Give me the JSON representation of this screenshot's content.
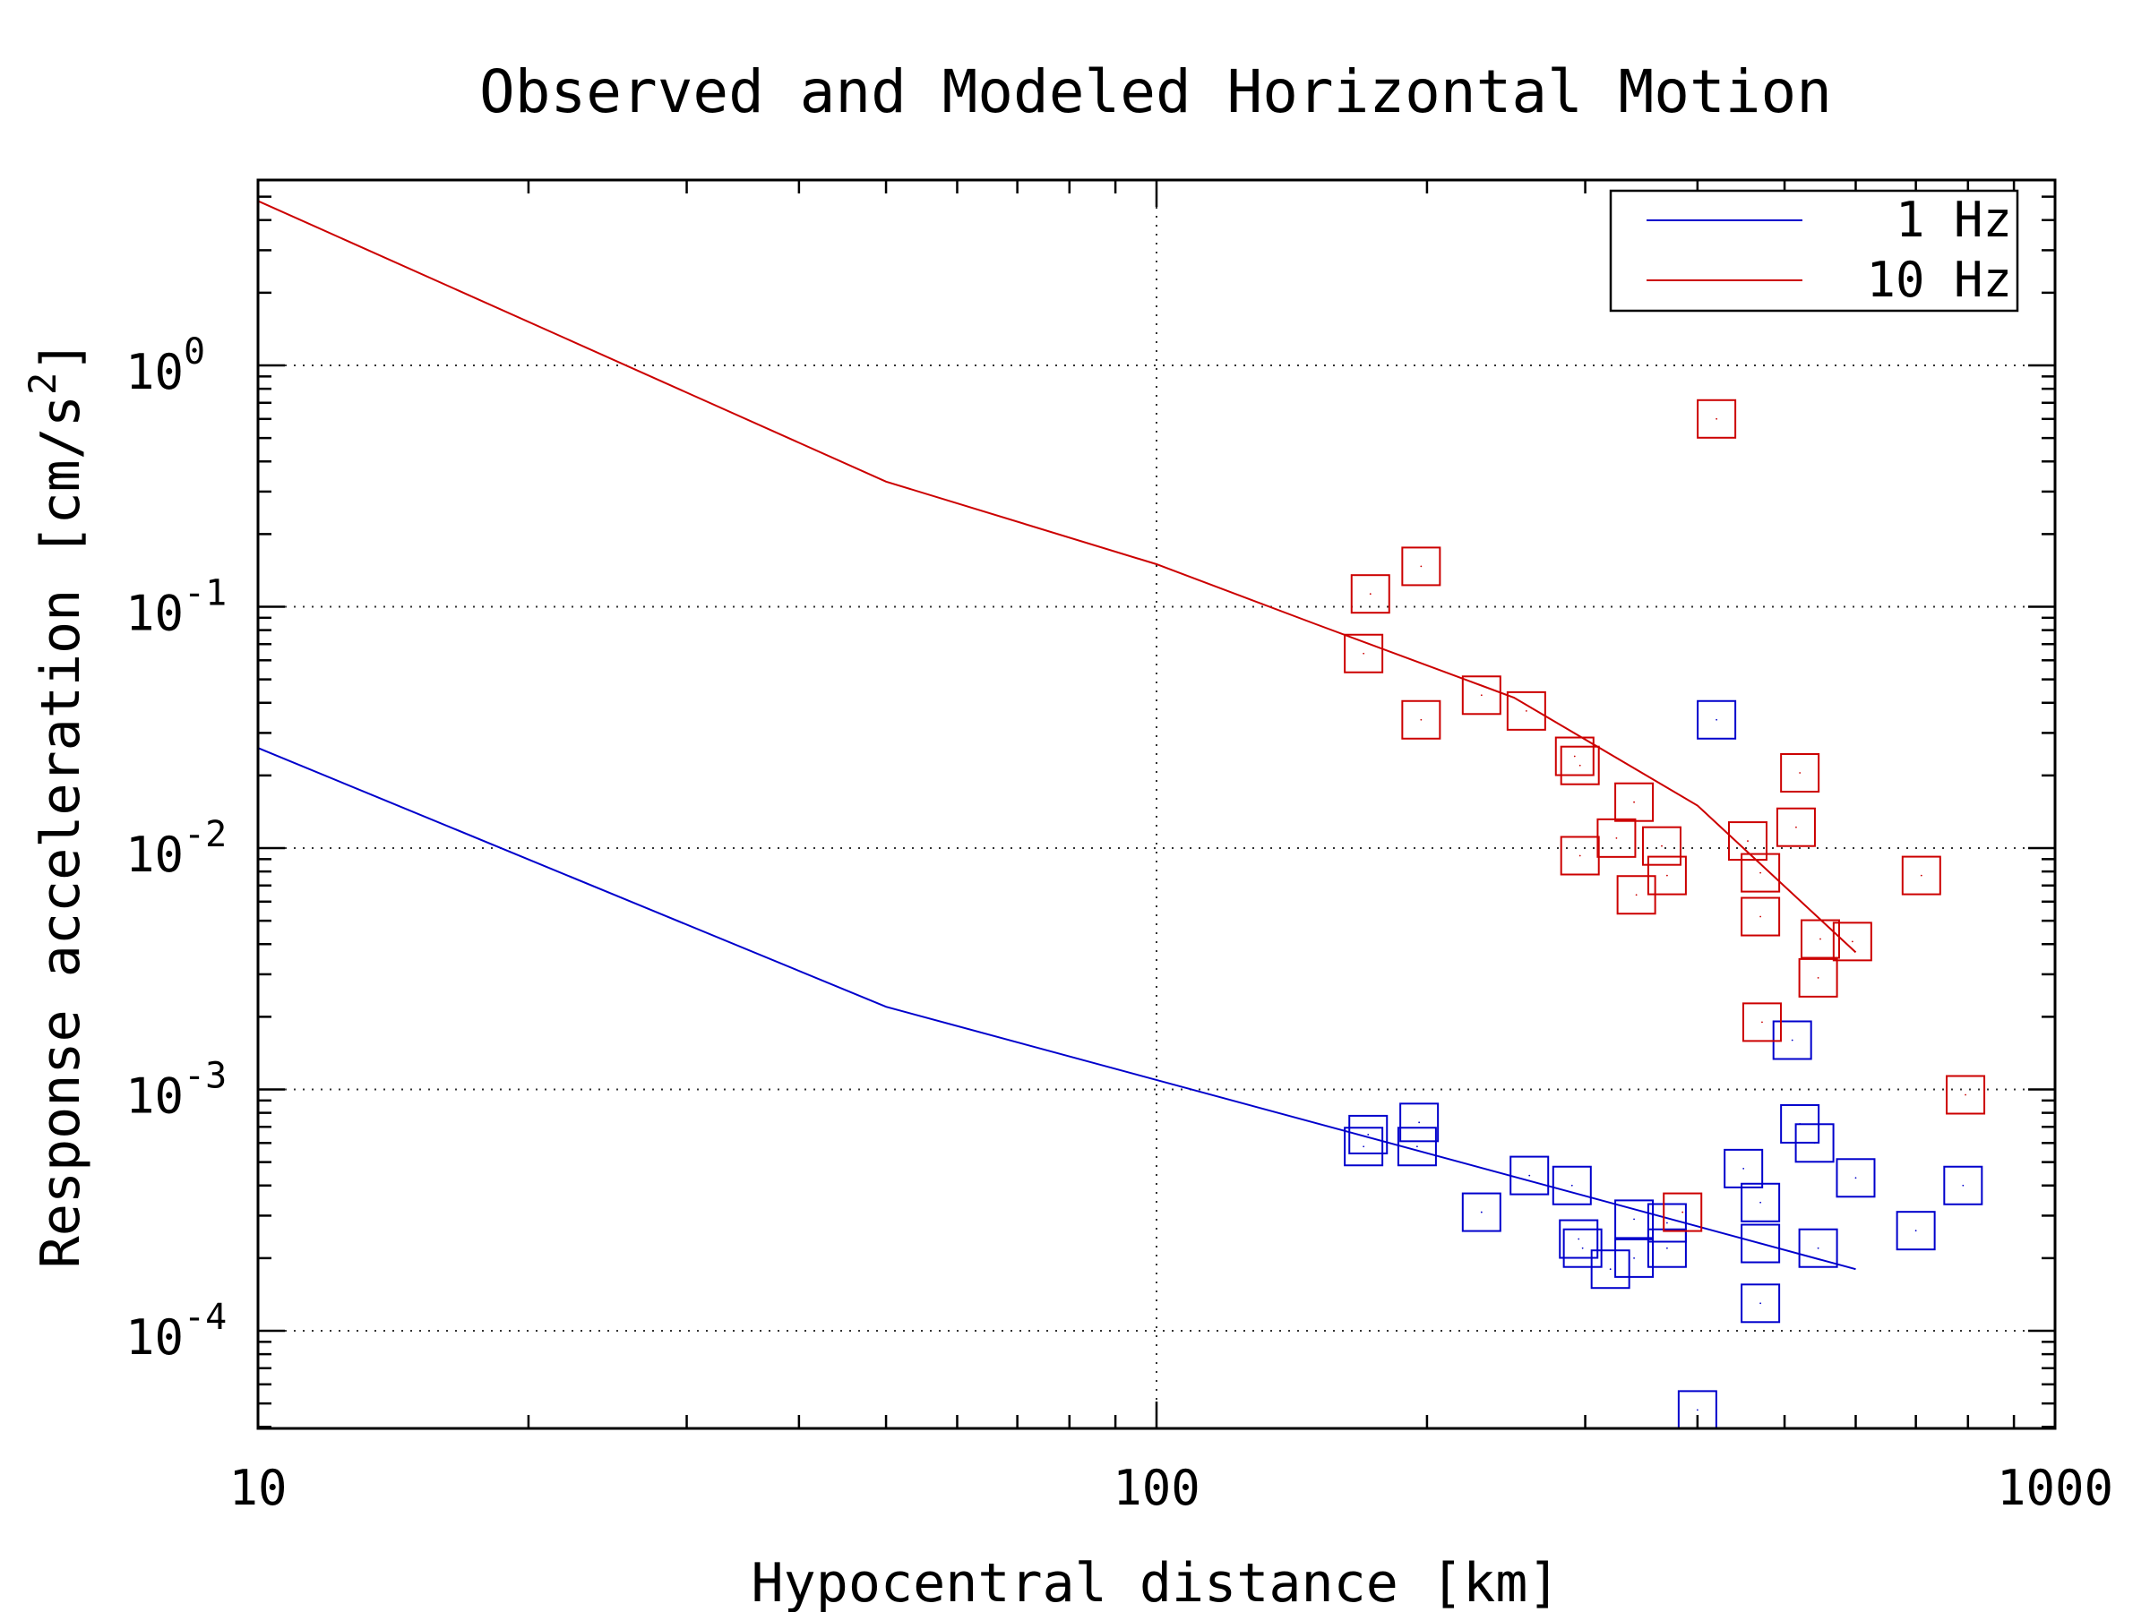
{
  "chart_data": {
    "type": "scatter",
    "title": "Observed and Modeled Horizontal Motion",
    "xlabel": "Hypocentral distance [km]",
    "ylabel": "Response acceleration [cm/s",
    "ylabel_superscript": "2",
    "ylabel_close": "]",
    "xscale": "log",
    "yscale": "log",
    "xlim": [
      10,
      1000
    ],
    "ylim": [
      4e-05,
      5.5
    ],
    "grid": true,
    "legend_position": "top-right",
    "x_ticks": [
      {
        "value": 10,
        "label": "10"
      },
      {
        "value": 100,
        "label": "100"
      },
      {
        "value": 1000,
        "label": "1000"
      }
    ],
    "y_ticks": [
      {
        "value": 1,
        "base": "10",
        "exp": "0"
      },
      {
        "value": 0.1,
        "base": "10",
        "exp": "-1"
      },
      {
        "value": 0.01,
        "base": "10",
        "exp": "-2"
      },
      {
        "value": 0.001,
        "base": "10",
        "exp": "-3"
      },
      {
        "value": 0.0001,
        "base": "10",
        "exp": "-4"
      }
    ],
    "series": [
      {
        "name": "1 Hz",
        "color": "#0000cc",
        "model_line": [
          [
            10,
            0.026
          ],
          [
            50,
            0.0022
          ],
          [
            600,
            0.00018
          ]
        ],
        "observed": [
          [
            170,
            0.00058
          ],
          [
            172,
            0.00065
          ],
          [
            195,
            0.00058
          ],
          [
            196,
            0.00073
          ],
          [
            230,
            0.00031
          ],
          [
            260,
            0.00044
          ],
          [
            290,
            0.0004
          ],
          [
            295,
            0.00024
          ],
          [
            298,
            0.00022
          ],
          [
            320,
            0.00018
          ],
          [
            340,
            0.0002
          ],
          [
            340,
            0.00029
          ],
          [
            370,
            0.00022
          ],
          [
            370,
            0.00028
          ],
          [
            400,
            4.7e-05
          ],
          [
            420,
            0.034
          ],
          [
            450,
            0.00047
          ],
          [
            470,
            0.00034
          ],
          [
            470,
            0.00023
          ],
          [
            470,
            0.00013
          ],
          [
            510,
            0.0016
          ],
          [
            520,
            0.00072
          ],
          [
            540,
            0.0006
          ],
          [
            545,
            0.00022
          ],
          [
            600,
            0.00043
          ],
          [
            700,
            0.00026
          ],
          [
            790,
            0.0004
          ]
        ]
      },
      {
        "name": "10 Hz",
        "color": "#cc0000",
        "model_line": [
          [
            10,
            4.8
          ],
          [
            50,
            0.33
          ],
          [
            100,
            0.15
          ],
          [
            150,
            0.085
          ],
          [
            250,
            0.042
          ],
          [
            400,
            0.015
          ],
          [
            600,
            0.0037
          ]
        ],
        "observed": [
          [
            170,
            0.064
          ],
          [
            173,
            0.113
          ],
          [
            197,
            0.147
          ],
          [
            197,
            0.034
          ],
          [
            230,
            0.043
          ],
          [
            258,
            0.037
          ],
          [
            292,
            0.024
          ],
          [
            296,
            0.022
          ],
          [
            296,
            0.0093
          ],
          [
            325,
            0.011
          ],
          [
            340,
            0.0155
          ],
          [
            342,
            0.0064
          ],
          [
            365,
            0.0102
          ],
          [
            370,
            0.0077
          ],
          [
            385,
            0.00031
          ],
          [
            420,
            0.6
          ],
          [
            455,
            0.0107
          ],
          [
            470,
            0.0079
          ],
          [
            470,
            0.0052
          ],
          [
            472,
            0.0019
          ],
          [
            515,
            0.0122
          ],
          [
            520,
            0.0205
          ],
          [
            545,
            0.0029
          ],
          [
            548,
            0.0042
          ],
          [
            595,
            0.0041
          ],
          [
            710,
            0.0077
          ],
          [
            795,
            0.00095
          ]
        ]
      }
    ]
  }
}
